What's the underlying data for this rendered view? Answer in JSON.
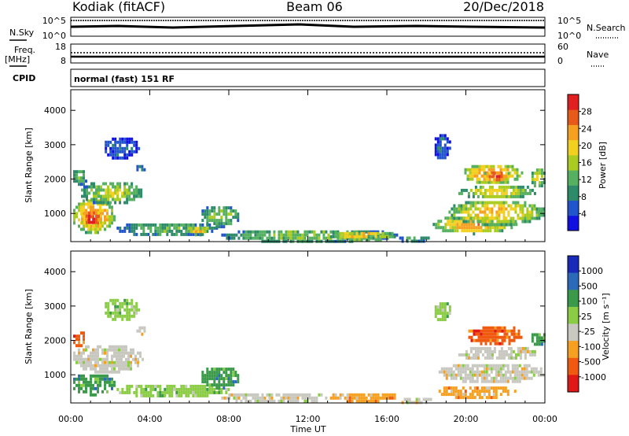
{
  "header": {
    "station": "Kodiak (fitACF)",
    "beam": "Beam 06",
    "date": "20/Dec/2018"
  },
  "top_panels": {
    "nsky_label": "N.Sky",
    "nsearch_label": "N.Search",
    "nsky_ticks": [
      "10^5",
      "10^0"
    ],
    "nsearch_ticks": [
      "10^5",
      "10^0"
    ],
    "freq_label": "Freq.",
    "freq_unit": "[MHz]",
    "freq_ticks": [
      "18",
      "8"
    ],
    "nave_label": "Nave",
    "nave_ticks": [
      "60",
      "0"
    ],
    "cpid_label": "CPID",
    "cpid_text": "normal (fast) 151 RF"
  },
  "colors": {
    "power_scale": [
      "#1010e0",
      "#2255cc",
      "#2e8b6a",
      "#55b060",
      "#aacc22",
      "#f2d020",
      "#f5a020",
      "#e85a1a",
      "#e02020"
    ],
    "velocity_scale": [
      "#e01818",
      "#f05a10",
      "#f5a020",
      "#c8c8c0",
      "#8acc44",
      "#3a9a4a",
      "#2a6ab8",
      "#1a2ab8"
    ]
  },
  "chart_data": [
    {
      "type": "heatmap",
      "name": "power",
      "ylabel": "Slant Range [km]",
      "ylim": [
        180,
        4600
      ],
      "yticks": [
        1000,
        2000,
        3000,
        4000
      ],
      "xlim": [
        0,
        24
      ],
      "xticks": [
        "00:00",
        "04:00",
        "08:00",
        "12:00",
        "16:00",
        "20:00",
        "00:00"
      ],
      "colorbar": {
        "label": "Power [dB]",
        "ticks": [
          "4",
          "8",
          "12",
          "16",
          "20",
          "24",
          "28"
        ],
        "range": [
          0,
          30
        ]
      },
      "regions": [
        {
          "t0": 0.0,
          "t1": 2.2,
          "r0": 450,
          "r1": 1500,
          "v": 24
        },
        {
          "t0": 0.4,
          "t1": 1.6,
          "r0": 650,
          "r1": 1150,
          "v": 30
        },
        {
          "t0": 0.0,
          "t1": 0.8,
          "r0": 1850,
          "r1": 2350,
          "v": 14
        },
        {
          "t0": 0.4,
          "t1": 3.6,
          "r0": 1300,
          "r1": 2000,
          "v": 16
        },
        {
          "t0": 1.6,
          "t1": 3.4,
          "r0": 2600,
          "r1": 3300,
          "v": 6
        },
        {
          "t0": 3.2,
          "t1": 3.8,
          "r0": 2200,
          "r1": 2500,
          "v": 8
        },
        {
          "t0": 2.2,
          "t1": 7.5,
          "r0": 380,
          "r1": 800,
          "v": 12
        },
        {
          "t0": 5.8,
          "t1": 7.0,
          "r0": 420,
          "r1": 700,
          "v": 22
        },
        {
          "t0": 6.5,
          "t1": 8.5,
          "r0": 650,
          "r1": 1300,
          "v": 14
        },
        {
          "t0": 7.5,
          "t1": 16.5,
          "r0": 200,
          "r1": 600,
          "v": 14
        },
        {
          "t0": 13.0,
          "t1": 16.5,
          "r0": 250,
          "r1": 550,
          "v": 20
        },
        {
          "t0": 16.5,
          "t1": 18.2,
          "r0": 200,
          "r1": 420,
          "v": 12
        },
        {
          "t0": 18.2,
          "t1": 22.5,
          "r0": 450,
          "r1": 1000,
          "v": 22
        },
        {
          "t0": 19.0,
          "t1": 24.0,
          "r0": 700,
          "r1": 1450,
          "v": 20
        },
        {
          "t0": 19.5,
          "t1": 23.5,
          "r0": 1450,
          "r1": 1900,
          "v": 18
        },
        {
          "t0": 19.8,
          "t1": 22.8,
          "r0": 1900,
          "r1": 2500,
          "v": 24
        },
        {
          "t0": 20.8,
          "t1": 22.2,
          "r0": 1950,
          "r1": 2300,
          "v": 29
        },
        {
          "t0": 18.3,
          "t1": 19.2,
          "r0": 2600,
          "r1": 3400,
          "v": 6
        },
        {
          "t0": 23.2,
          "t1": 24.0,
          "r0": 1800,
          "r1": 2400,
          "v": 18
        }
      ]
    },
    {
      "type": "heatmap",
      "name": "velocity",
      "ylabel": "Slant Range [km]",
      "xlabel": "Time UT",
      "ylim": [
        180,
        4600
      ],
      "yticks": [
        1000,
        2000,
        3000,
        4000
      ],
      "xlim": [
        0,
        24
      ],
      "xticks": [
        "00:00",
        "04:00",
        "08:00",
        "12:00",
        "16:00",
        "20:00",
        "00:00"
      ],
      "colorbar": {
        "label": "Velocity [m s⁻¹]",
        "ticks": [
          "1000",
          "500",
          "100",
          "25",
          "-25",
          "-100",
          "-500",
          "-1000"
        ]
      },
      "regions": [
        {
          "t0": 0.0,
          "t1": 2.2,
          "r0": 450,
          "r1": 1100,
          "v": 5
        },
        {
          "t0": 0.0,
          "t1": 3.6,
          "r0": 1100,
          "r1": 1950,
          "v": 3
        },
        {
          "t0": 0.0,
          "t1": 0.7,
          "r0": 1850,
          "r1": 2350,
          "v": 1
        },
        {
          "t0": 1.6,
          "t1": 3.4,
          "r0": 2600,
          "r1": 3300,
          "v": 4
        },
        {
          "t0": 3.2,
          "t1": 3.8,
          "r0": 2200,
          "r1": 2500,
          "v": 3
        },
        {
          "t0": 2.2,
          "t1": 8.0,
          "r0": 380,
          "r1": 800,
          "v": 4
        },
        {
          "t0": 6.5,
          "t1": 8.5,
          "r0": 650,
          "r1": 1300,
          "v": 5
        },
        {
          "t0": 7.5,
          "t1": 13.0,
          "r0": 200,
          "r1": 550,
          "v": 3
        },
        {
          "t0": 13.0,
          "t1": 16.5,
          "r0": 250,
          "r1": 550,
          "v": 2
        },
        {
          "t0": 16.5,
          "t1": 18.2,
          "r0": 200,
          "r1": 420,
          "v": 3
        },
        {
          "t0": 18.5,
          "t1": 22.5,
          "r0": 350,
          "r1": 750,
          "v": 2
        },
        {
          "t0": 18.5,
          "t1": 24.0,
          "r0": 800,
          "r1": 1400,
          "v": 3
        },
        {
          "t0": 19.5,
          "t1": 23.5,
          "r0": 1450,
          "r1": 1900,
          "v": 3
        },
        {
          "t0": 20.0,
          "t1": 22.8,
          "r0": 1900,
          "r1": 2500,
          "v": 1
        },
        {
          "t0": 18.3,
          "t1": 19.2,
          "r0": 2600,
          "r1": 3200,
          "v": 4
        },
        {
          "t0": 23.2,
          "t1": 24.0,
          "r0": 1900,
          "r1": 2300,
          "v": 5
        }
      ]
    }
  ]
}
